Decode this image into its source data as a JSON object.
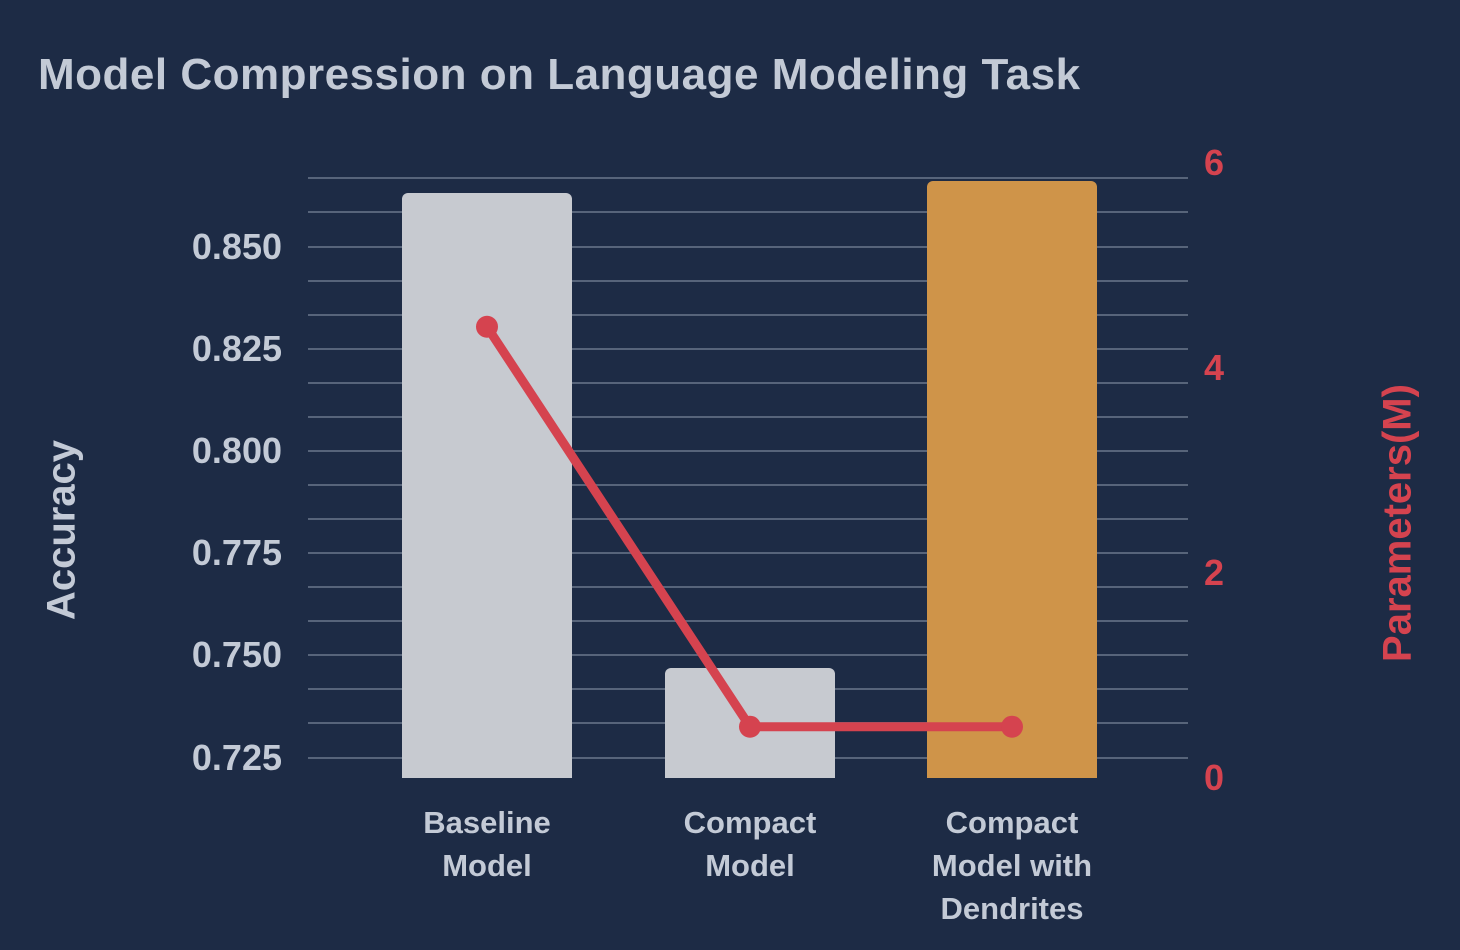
{
  "chart_data": {
    "type": "bar",
    "title": "Model Compression on Language Modeling Task",
    "ylabel_left": "Accuracy",
    "ylabel_right": "Parameters(M)",
    "categories": [
      {
        "label": "Baseline Model",
        "lines": [
          "Baseline",
          "Model"
        ]
      },
      {
        "label": "Compact Model",
        "lines": [
          "Compact",
          "Model"
        ]
      },
      {
        "label": "Compact Model with Dendrites",
        "lines": [
          "Compact",
          "Model with",
          "Dendrites"
        ]
      }
    ],
    "series": [
      {
        "name": "Accuracy",
        "type": "bar",
        "axis": "left",
        "values": [
          0.863,
          0.747,
          0.866
        ],
        "colors": [
          "#c7cad0",
          "#c7cad0",
          "#cf9449"
        ]
      },
      {
        "name": "Parameters(M)",
        "type": "line",
        "axis": "right",
        "values": [
          4.4,
          0.5,
          0.5
        ],
        "color": "#d5434f"
      }
    ],
    "yticks_left": [
      {
        "label": "0.850",
        "value": 0.85
      },
      {
        "label": "0.825",
        "value": 0.825
      },
      {
        "label": "0.800",
        "value": 0.8
      },
      {
        "label": "0.775",
        "value": 0.775
      },
      {
        "label": "0.750",
        "value": 0.75
      },
      {
        "label": "0.725",
        "value": 0.725
      }
    ],
    "yticks_right": [
      {
        "label": "6",
        "value": 6
      },
      {
        "label": "4",
        "value": 4
      },
      {
        "label": "2",
        "value": 2
      },
      {
        "label": "0",
        "value": 0
      }
    ],
    "ylim_left": [
      0.72,
      0.867
    ],
    "ylim_right": [
      0,
      5.86
    ],
    "grid": {
      "orientation": "horizontal",
      "min": 0.725,
      "step": 0.00833333,
      "count": 18
    },
    "legend": "none"
  },
  "colors": {
    "background": "#1d2b45",
    "text": "#c3cad6",
    "bar_gray": "#c7cad0",
    "bar_orange": "#cf9449",
    "line_red": "#d5434f",
    "gridline": "#91a0b0"
  }
}
